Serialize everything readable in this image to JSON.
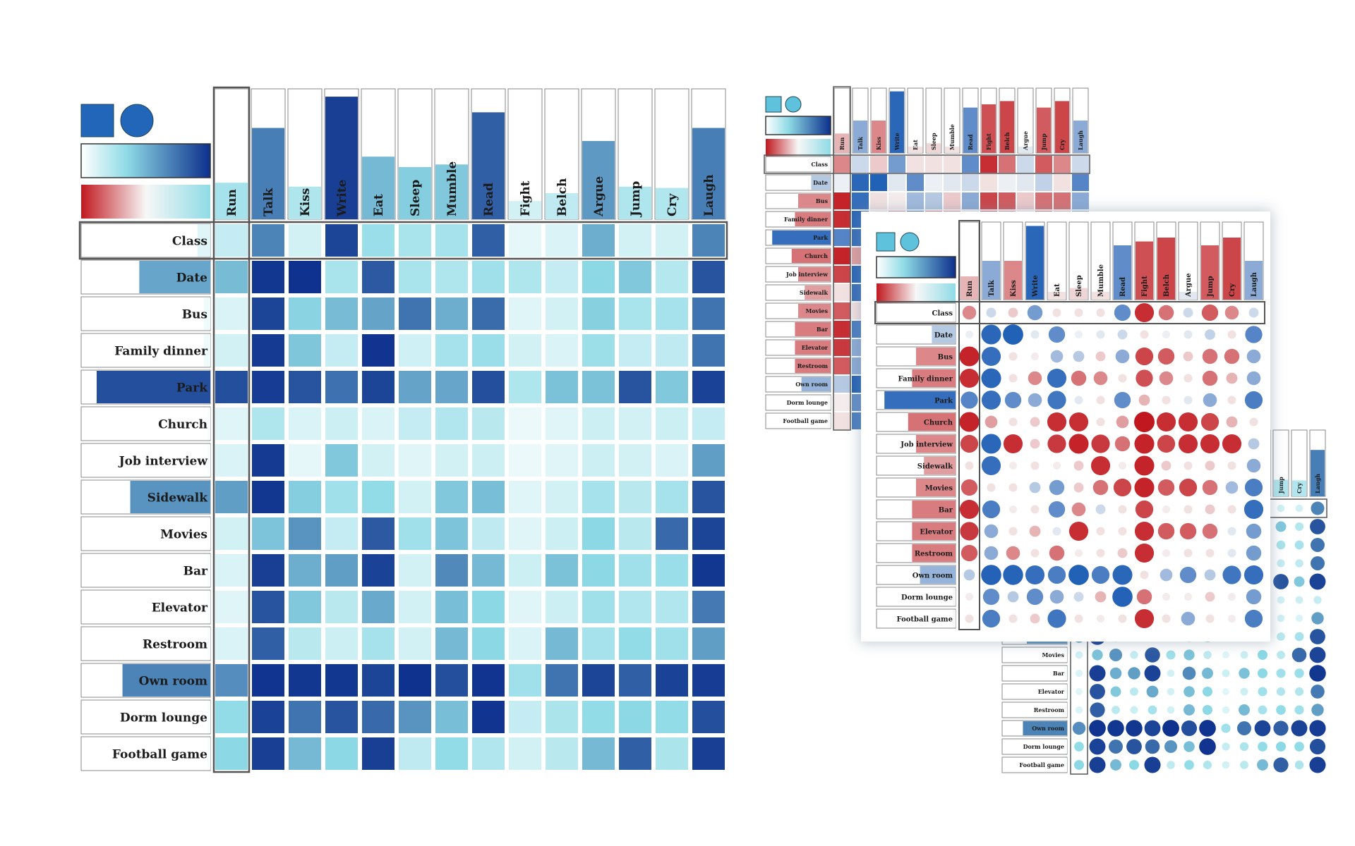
{
  "columns": [
    "Run",
    "Talk",
    "Kiss",
    "Write",
    "Eat",
    "Sleep",
    "Mumble",
    "Read",
    "Fight",
    "Belch",
    "Argue",
    "Jump",
    "Cry",
    "Laugh"
  ],
  "rows": [
    "Class",
    "Date",
    "Bus",
    "Family dinner",
    "Park",
    "Church",
    "Job interview",
    "Sidewalk",
    "Movies",
    "Bar",
    "Elevator",
    "Restroom",
    "Own room",
    "Dorm lounge",
    "Football game"
  ],
  "colors": {
    "seq_low": "#ffffff",
    "seq_mid": "#8fdbe6",
    "seq_high": "#0c2f8c",
    "div_neg": "#c0181e",
    "div_zero": "#f7f7f7",
    "div_pos": "#1f5fb5",
    "legend_square": "#2166b8",
    "legend_square_light": "#5fc2dc",
    "frame": "#555555"
  },
  "chart_data": [
    {
      "type": "heatmap",
      "name": "",
      "glyph": "square",
      "scale": "sequential",
      "value_range": [
        0,
        1
      ],
      "x": [
        "Run",
        "Talk",
        "Kiss",
        "Write",
        "Eat",
        "Sleep",
        "Mumble",
        "Read",
        "Fight",
        "Belch",
        "Argue",
        "Jump",
        "Cry",
        "Laugh"
      ],
      "y": [
        "Class",
        "Date",
        "Bus",
        "Family dinner",
        "Park",
        "Church",
        "Job interview",
        "Sidewalk",
        "Movies",
        "Bar",
        "Elevator",
        "Restroom",
        "Own room",
        "Dorm lounge",
        "Football game"
      ],
      "column_totals": [
        0.28,
        0.7,
        0.25,
        0.94,
        0.48,
        0.4,
        0.42,
        0.82,
        0.14,
        0.2,
        0.6,
        0.25,
        0.24,
        0.7
      ],
      "row_totals": [
        0.1,
        0.55,
        0.05,
        0.05,
        0.88,
        0.02,
        0.02,
        0.62,
        0.01,
        0.02,
        0.02,
        0.02,
        0.68,
        0.02,
        0.02
      ],
      "values": [
        [
          0.18,
          0.68,
          0.14,
          0.92,
          0.32,
          0.27,
          0.28,
          0.82,
          0.08,
          0.12,
          0.52,
          0.14,
          0.14,
          0.68
        ],
        [
          0.47,
          0.97,
          0.99,
          0.27,
          0.84,
          0.27,
          0.25,
          0.3,
          0.25,
          0.18,
          0.36,
          0.42,
          0.23,
          0.86
        ],
        [
          0.12,
          0.92,
          0.38,
          0.47,
          0.56,
          0.74,
          0.52,
          0.77,
          0.1,
          0.14,
          0.39,
          0.27,
          0.28,
          0.74
        ],
        [
          0.14,
          0.96,
          0.43,
          0.18,
          0.98,
          0.15,
          0.28,
          0.32,
          0.14,
          0.12,
          0.31,
          0.18,
          0.2,
          0.74
        ],
        [
          0.88,
          0.95,
          0.86,
          0.75,
          0.92,
          0.56,
          0.55,
          0.88,
          0.25,
          0.45,
          0.45,
          0.86,
          0.42,
          0.93
        ],
        [
          0.1,
          0.25,
          0.12,
          0.16,
          0.12,
          0.18,
          0.24,
          0.22,
          0.06,
          0.1,
          0.16,
          0.14,
          0.16,
          0.18
        ],
        [
          0.12,
          0.96,
          0.08,
          0.42,
          0.14,
          0.1,
          0.14,
          0.16,
          0.06,
          0.1,
          0.16,
          0.14,
          0.12,
          0.58
        ],
        [
          0.58,
          0.97,
          0.4,
          0.3,
          0.34,
          0.14,
          0.42,
          0.46,
          0.1,
          0.14,
          0.28,
          0.22,
          0.28,
          0.86
        ],
        [
          0.14,
          0.44,
          0.62,
          0.18,
          0.84,
          0.3,
          0.44,
          0.2,
          0.1,
          0.16,
          0.36,
          0.22,
          0.78,
          0.92
        ],
        [
          0.12,
          0.94,
          0.52,
          0.58,
          0.93,
          0.14,
          0.66,
          0.48,
          0.16,
          0.45,
          0.36,
          0.3,
          0.32,
          0.97
        ],
        [
          0.1,
          0.86,
          0.42,
          0.22,
          0.54,
          0.14,
          0.46,
          0.36,
          0.1,
          0.16,
          0.3,
          0.24,
          0.24,
          0.72
        ],
        [
          0.12,
          0.82,
          0.22,
          0.16,
          0.28,
          0.14,
          0.48,
          0.36,
          0.12,
          0.48,
          0.28,
          0.34,
          0.3,
          0.58
        ],
        [
          0.64,
          0.98,
          0.97,
          0.97,
          0.92,
          0.99,
          0.88,
          0.98,
          0.3,
          0.74,
          0.92,
          0.82,
          0.93,
          0.95
        ],
        [
          0.34,
          0.93,
          0.74,
          0.86,
          0.78,
          0.62,
          0.46,
          0.98,
          0.18,
          0.26,
          0.34,
          0.36,
          0.34,
          0.88
        ],
        [
          0.36,
          0.94,
          0.48,
          0.36,
          0.94,
          0.2,
          0.34,
          0.24,
          0.14,
          0.22,
          0.48,
          0.82,
          0.26,
          0.94
        ]
      ]
    },
    {
      "type": "heatmap",
      "name": "",
      "glyph": "square",
      "scale": "diverging",
      "value_range": [
        -1,
        1
      ],
      "x": [
        "Run",
        "Talk",
        "Kiss",
        "Write",
        "Eat",
        "Sleep",
        "Mumble",
        "Read",
        "Fight",
        "Belch",
        "Argue",
        "Jump",
        "Cry",
        "Laugh"
      ],
      "y": [
        "Class",
        "Date",
        "Bus",
        "Family dinner",
        "Park",
        "Church",
        "Job interview",
        "Sidewalk",
        "Movies",
        "Bar",
        "Elevator",
        "Restroom",
        "Own room",
        "Dorm lounge",
        "Football game"
      ],
      "column_totals": [
        -0.3,
        0.5,
        -0.5,
        0.95,
        -0.1,
        -0.15,
        -0.1,
        0.7,
        -0.75,
        -0.8,
        0.1,
        -0.7,
        -0.8,
        0.5
      ],
      "row_totals": [
        0.0,
        0.3,
        -0.5,
        -0.55,
        0.9,
        -0.6,
        -0.5,
        -0.4,
        -0.5,
        -0.55,
        -0.55,
        -0.55,
        0.45,
        0.0,
        0.0
      ],
      "values": [
        [
          -0.5,
          0.2,
          -0.2,
          0.6,
          -0.1,
          -0.1,
          -0.1,
          0.7,
          -0.9,
          -0.6,
          0.2,
          -0.7,
          -0.5,
          0.2
        ],
        [
          0.05,
          0.95,
          0.99,
          0.1,
          0.7,
          0.05,
          0.1,
          0.2,
          -0.1,
          0.05,
          0.1,
          0.25,
          -0.1,
          0.75
        ],
        [
          -0.95,
          0.9,
          -0.1,
          -0.05,
          0.4,
          0.3,
          -0.2,
          0.5,
          -0.8,
          -0.7,
          -0.2,
          -0.6,
          -0.6,
          0.5
        ],
        [
          -0.9,
          0.95,
          -0.1,
          -0.5,
          0.9,
          -0.6,
          -0.5,
          -0.1,
          -0.75,
          -0.5,
          -0.1,
          -0.6,
          -0.3,
          0.5
        ],
        [
          0.75,
          0.9,
          0.7,
          0.5,
          0.85,
          0.1,
          -0.1,
          0.7,
          -0.3,
          -0.1,
          0.1,
          0.5,
          -0.1,
          0.8
        ],
        [
          -0.95,
          -0.4,
          -0.1,
          -0.2,
          -0.9,
          -0.9,
          -0.1,
          -0.4,
          -1.0,
          -0.9,
          -0.9,
          -0.8,
          -0.3,
          -0.1
        ],
        [
          -0.8,
          0.95,
          -0.9,
          -0.2,
          -0.85,
          -0.95,
          -0.85,
          -0.6,
          -0.95,
          -0.8,
          -0.9,
          -0.9,
          -0.9,
          0.3
        ],
        [
          -0.1,
          0.9,
          -0.05,
          -0.1,
          -0.05,
          -0.2,
          -0.9,
          -0.05,
          -0.95,
          -0.2,
          -0.1,
          -0.2,
          -0.1,
          0.5
        ],
        [
          -0.7,
          -0.1,
          -0.1,
          0.3,
          0.6,
          -0.2,
          -0.6,
          -0.8,
          -0.95,
          -0.7,
          -0.8,
          -0.6,
          0.4,
          0.8
        ],
        [
          -0.9,
          0.8,
          -0.05,
          -0.1,
          0.7,
          -0.5,
          0.2,
          -0.1,
          -0.8,
          -0.05,
          -0.1,
          -0.2,
          -0.1,
          0.9
        ],
        [
          -0.85,
          0.5,
          -0.1,
          -0.3,
          0.1,
          -0.9,
          -0.1,
          -0.1,
          -0.9,
          -0.7,
          -0.7,
          -0.6,
          0.1,
          0.6
        ],
        [
          -0.7,
          0.5,
          -0.5,
          -0.1,
          -0.6,
          -0.05,
          -0.1,
          -0.2,
          -0.9,
          -0.05,
          -0.1,
          -0.1,
          0.1,
          0.6
        ],
        [
          0.3,
          0.98,
          0.97,
          0.9,
          0.8,
          0.99,
          0.8,
          0.95,
          -0.1,
          0.4,
          0.7,
          0.3,
          0.85,
          0.9
        ],
        [
          -0.05,
          0.7,
          0.3,
          0.7,
          0.5,
          0.2,
          -0.3,
          0.98,
          -0.6,
          -0.05,
          -0.05,
          -0.2,
          -0.05,
          0.6
        ],
        [
          -0.1,
          0.8,
          -0.1,
          -0.2,
          0.85,
          -0.1,
          -0.05,
          -0.1,
          -0.9,
          -0.1,
          0.5,
          -0.1,
          -0.05,
          0.8
        ]
      ]
    }
  ]
}
